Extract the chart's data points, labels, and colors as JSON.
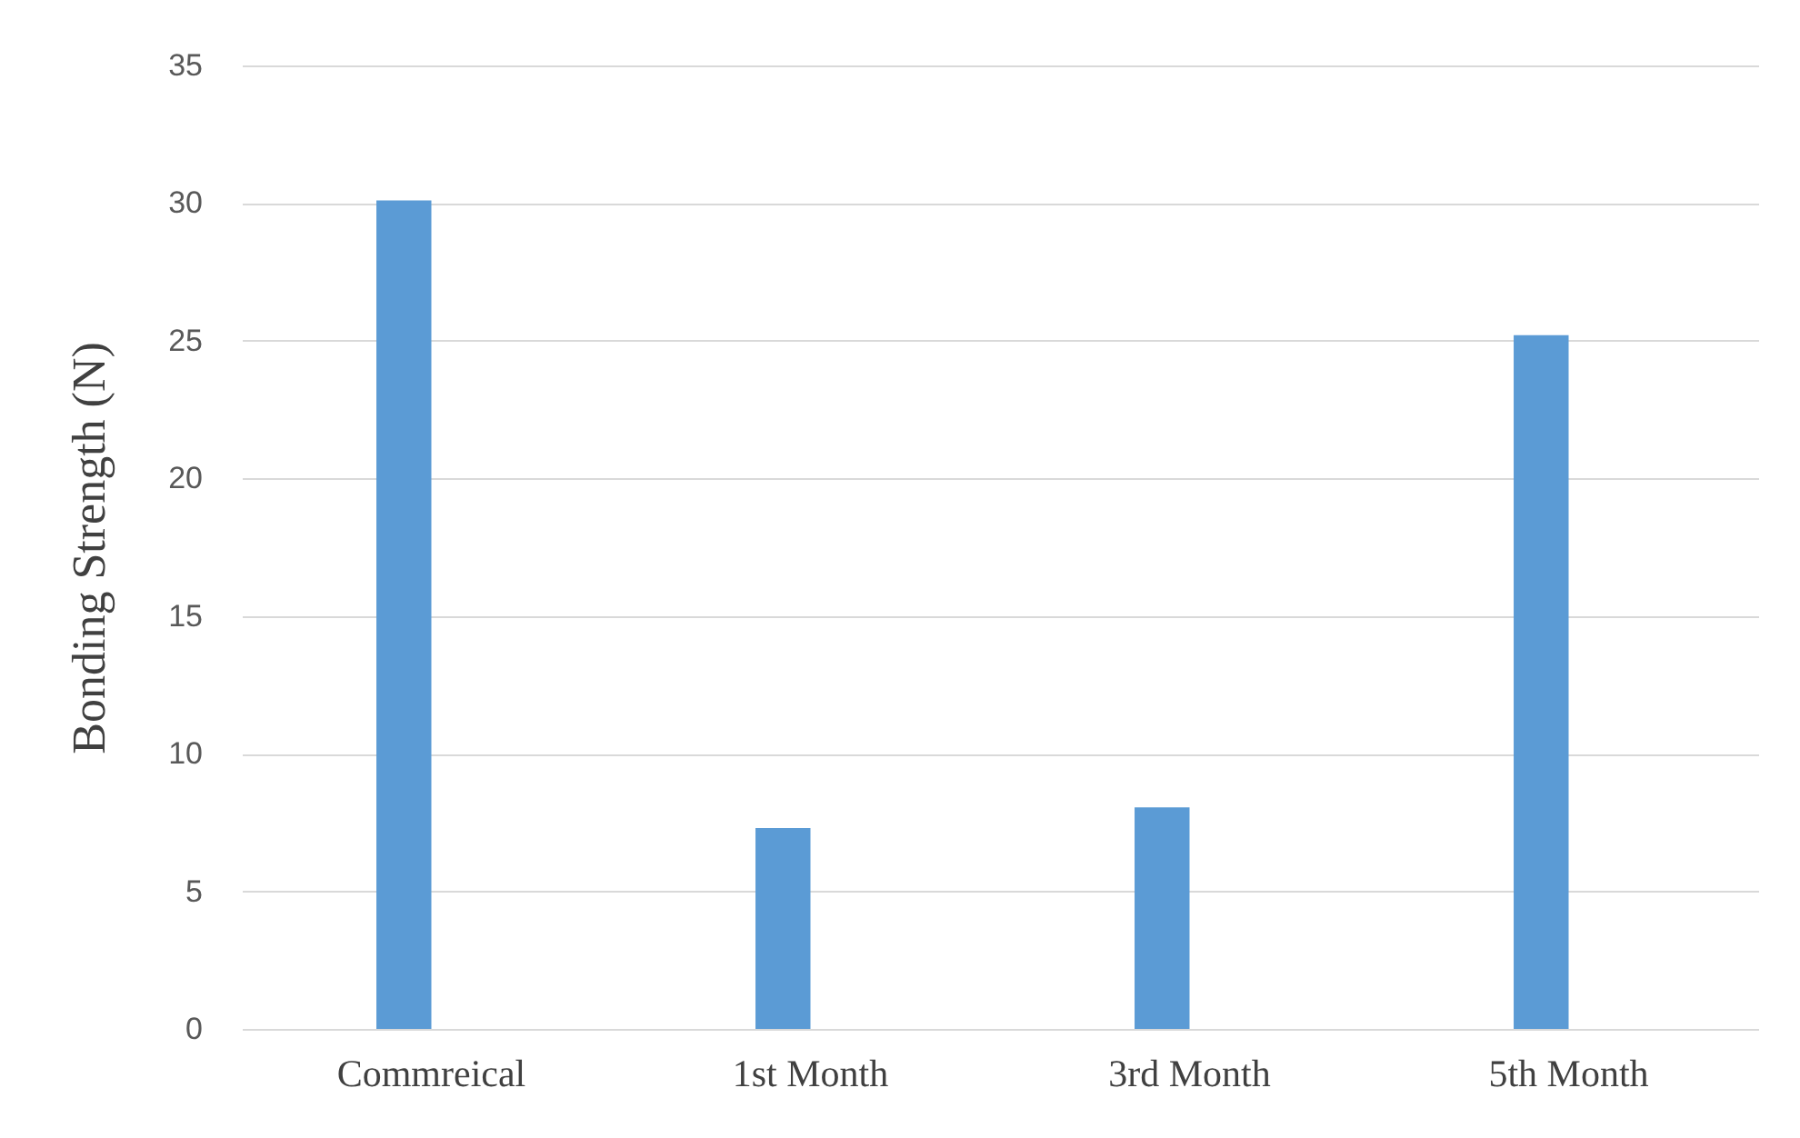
{
  "chart_data": {
    "type": "bar",
    "ylabel": "Bonding Strength (N)",
    "categories": [
      "Commreical",
      "1st Month",
      "3rd Month",
      "5th Month"
    ],
    "series": [
      {
        "color": "#5b9bd5",
        "values": [
          30.1,
          7.3,
          8.05,
          25.2
        ]
      }
    ],
    "ylim": [
      0,
      35
    ],
    "yticks": [
      0,
      5,
      10,
      15,
      20,
      25,
      30,
      35
    ],
    "grid": "y"
  }
}
